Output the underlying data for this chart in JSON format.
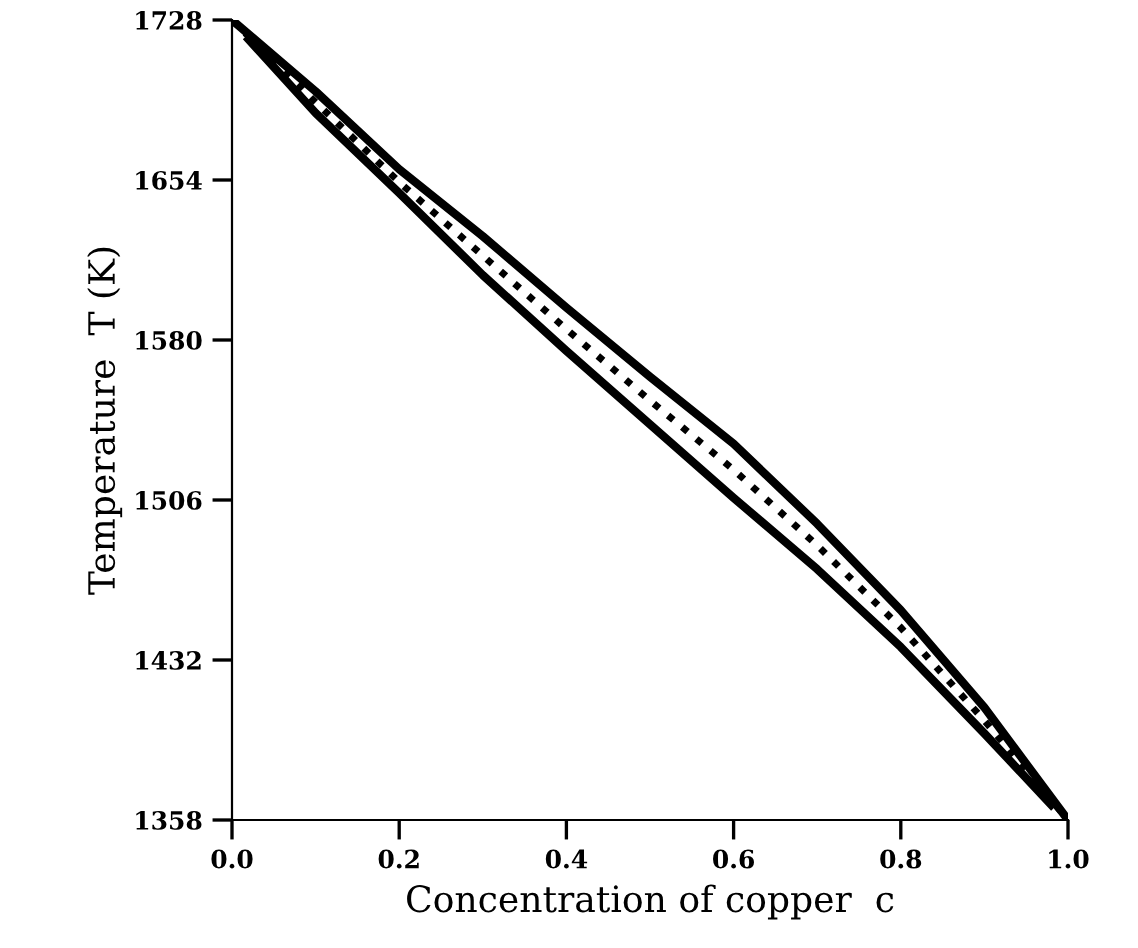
{
  "chart_data": {
    "type": "line",
    "xlabel": "Concentration of copper  c",
    "ylabel": "Temperature  T (K)",
    "x": [
      0.0,
      0.1,
      0.2,
      0.3,
      0.4,
      0.5,
      0.6,
      0.7,
      0.8,
      0.9,
      1.0
    ],
    "series": [
      {
        "color": "#000000",
        "line_style": "solid",
        "values": [
          1728,
          1695,
          1659,
          1628,
          1595,
          1563,
          1532,
          1495,
          1455,
          1410,
          1358
        ]
      },
      {
        "color": "#000000",
        "line_style": "dotted",
        "values": [
          1728,
          1690,
          1653,
          1619,
          1585,
          1552,
          1520,
          1485,
          1447,
          1404,
          1358
        ]
      },
      {
        "color": "#000000",
        "line_style": "solid",
        "x": [
          0.02,
          0.1,
          0.2,
          0.3,
          0.4,
          0.5,
          0.6,
          0.7,
          0.8,
          0.9,
          0.98
        ],
        "values": [
          1719,
          1685,
          1648,
          1610,
          1575,
          1541,
          1507,
          1474,
          1438,
          1398,
          1365
        ]
      }
    ],
    "xlim": [
      0,
      1
    ],
    "ylim": [
      1358,
      1728
    ],
    "xticks": [
      {
        "value": 0,
        "label": "0.0"
      },
      0.2,
      0.4,
      0.6,
      0.8,
      {
        "value": 1,
        "label": "1.0"
      }
    ],
    "yticks": [
      1358,
      1432,
      1506,
      1580,
      1654,
      1728
    ],
    "grid": false,
    "legend": false,
    "marker": "none"
  }
}
